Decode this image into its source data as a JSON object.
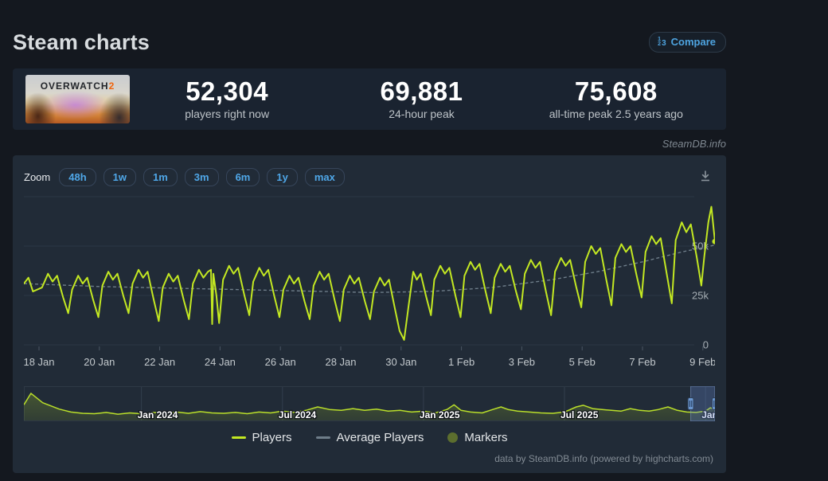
{
  "page": {
    "title": "Steam charts",
    "watermark": "SteamDB.info",
    "credit": "data by SteamDB.info (powered by highcharts.com)"
  },
  "compare": {
    "label": "Compare",
    "digits": {
      "a": "1",
      "b": "2",
      "c": "3"
    }
  },
  "game": {
    "name": "Overwatch 2",
    "logo_main": "OVERWATCH",
    "logo_suffix": "2"
  },
  "stats": [
    {
      "value": "52,304",
      "label": "players right now"
    },
    {
      "value": "69,881",
      "label": "24-hour peak"
    },
    {
      "value": "75,608",
      "label": "all-time peak 2.5 years ago"
    }
  ],
  "toolbar": {
    "zoom_label": "Zoom",
    "ranges": [
      "48h",
      "1w",
      "1m",
      "3m",
      "6m",
      "1y",
      "max"
    ]
  },
  "legend": [
    {
      "label": "Players",
      "swatch": "line",
      "color": "#c3e822"
    },
    {
      "label": "Average Players",
      "swatch": "line",
      "color": "#6e7d89"
    },
    {
      "label": "Markers",
      "swatch": "circle",
      "color": "#5c6e2e"
    }
  ],
  "chart_data": {
    "type": "line",
    "units": "thousands of concurrent players",
    "x_unit": "days since 18 Jan 00:00",
    "ylim_k": [
      0,
      75
    ],
    "grid_values_k": [
      0,
      25,
      50,
      75
    ],
    "yticks": [
      {
        "label": "50k",
        "value": 50
      },
      {
        "label": "25k",
        "value": 25
      },
      {
        "label": "0",
        "value": 0
      }
    ],
    "xticklabels": [
      "18 Jan",
      "20 Jan",
      "22 Jan",
      "24 Jan",
      "26 Jan",
      "28 Jan",
      "30 Jan",
      "1 Feb",
      "3 Feb",
      "5 Feb",
      "7 Feb",
      "9 Feb"
    ],
    "series": [
      {
        "name": "Players",
        "color": "#c3e822",
        "points": [
          [
            -0.5,
            31
          ],
          [
            -0.35,
            34
          ],
          [
            -0.2,
            27
          ],
          [
            0.1,
            29
          ],
          [
            0.3,
            36
          ],
          [
            0.45,
            32
          ],
          [
            0.6,
            35
          ],
          [
            0.8,
            24
          ],
          [
            0.97,
            16
          ],
          [
            1.1,
            28
          ],
          [
            1.3,
            35
          ],
          [
            1.45,
            31
          ],
          [
            1.6,
            34
          ],
          [
            1.8,
            22.5
          ],
          [
            1.97,
            14
          ],
          [
            2.1,
            30
          ],
          [
            2.3,
            37
          ],
          [
            2.45,
            33
          ],
          [
            2.6,
            36
          ],
          [
            2.8,
            24.5
          ],
          [
            2.97,
            16
          ],
          [
            3.1,
            31
          ],
          [
            3.3,
            38
          ],
          [
            3.45,
            34
          ],
          [
            3.6,
            37
          ],
          [
            3.8,
            23
          ],
          [
            3.97,
            12
          ],
          [
            4.1,
            29
          ],
          [
            4.3,
            36
          ],
          [
            4.45,
            32
          ],
          [
            4.6,
            35
          ],
          [
            4.8,
            22.5
          ],
          [
            4.97,
            13
          ],
          [
            5.1,
            31
          ],
          [
            5.3,
            38
          ],
          [
            5.45,
            34
          ],
          [
            5.6,
            37
          ],
          [
            5.7,
            38
          ],
          [
            5.74,
            10.5
          ],
          [
            5.78,
            36
          ],
          [
            5.88,
            25
          ],
          [
            5.97,
            11
          ],
          [
            6.1,
            33
          ],
          [
            6.3,
            40
          ],
          [
            6.45,
            36
          ],
          [
            6.6,
            39
          ],
          [
            6.8,
            25.5
          ],
          [
            6.97,
            15
          ],
          [
            7.1,
            32
          ],
          [
            7.3,
            39
          ],
          [
            7.45,
            35
          ],
          [
            7.6,
            38
          ],
          [
            7.8,
            24.5
          ],
          [
            7.97,
            14
          ],
          [
            8.1,
            28
          ],
          [
            8.3,
            35
          ],
          [
            8.45,
            31
          ],
          [
            8.6,
            34
          ],
          [
            8.8,
            22
          ],
          [
            8.97,
            13
          ],
          [
            9.1,
            30
          ],
          [
            9.3,
            37
          ],
          [
            9.45,
            33
          ],
          [
            9.6,
            36
          ],
          [
            9.8,
            22.5
          ],
          [
            9.97,
            12
          ],
          [
            10.1,
            28
          ],
          [
            10.3,
            35
          ],
          [
            10.45,
            31
          ],
          [
            10.6,
            34
          ],
          [
            10.8,
            22
          ],
          [
            10.97,
            13
          ],
          [
            11.1,
            27
          ],
          [
            11.3,
            34
          ],
          [
            11.45,
            30
          ],
          [
            11.6,
            33
          ],
          [
            11.8,
            18
          ],
          [
            11.95,
            7
          ],
          [
            12.1,
            2.5
          ],
          [
            12.25,
            20
          ],
          [
            12.4,
            37
          ],
          [
            12.52,
            33
          ],
          [
            12.65,
            36
          ],
          [
            12.82,
            25
          ],
          [
            12.99,
            15
          ],
          [
            13.1,
            33
          ],
          [
            13.3,
            40
          ],
          [
            13.45,
            36
          ],
          [
            13.6,
            39
          ],
          [
            13.8,
            25
          ],
          [
            13.97,
            14
          ],
          [
            14.1,
            35
          ],
          [
            14.3,
            42
          ],
          [
            14.45,
            38
          ],
          [
            14.6,
            41
          ],
          [
            14.8,
            27
          ],
          [
            14.97,
            16
          ],
          [
            15.1,
            34
          ],
          [
            15.3,
            41
          ],
          [
            15.45,
            37
          ],
          [
            15.6,
            40
          ],
          [
            15.8,
            27.5
          ],
          [
            15.97,
            18
          ],
          [
            16.1,
            36
          ],
          [
            16.3,
            43
          ],
          [
            16.45,
            39
          ],
          [
            16.6,
            42
          ],
          [
            16.8,
            27
          ],
          [
            16.97,
            15
          ],
          [
            17.1,
            37
          ],
          [
            17.3,
            44
          ],
          [
            17.45,
            40
          ],
          [
            17.6,
            43
          ],
          [
            17.8,
            29.5
          ],
          [
            17.97,
            19
          ],
          [
            18.1,
            42
          ],
          [
            18.3,
            50
          ],
          [
            18.45,
            46
          ],
          [
            18.6,
            49
          ],
          [
            18.8,
            33
          ],
          [
            18.97,
            20
          ],
          [
            19.1,
            44
          ],
          [
            19.3,
            51
          ],
          [
            19.45,
            47
          ],
          [
            19.6,
            50
          ],
          [
            19.8,
            35.5
          ],
          [
            19.97,
            24
          ],
          [
            20.1,
            47
          ],
          [
            20.3,
            55
          ],
          [
            20.45,
            51
          ],
          [
            20.6,
            54
          ],
          [
            20.8,
            36
          ],
          [
            20.97,
            21
          ],
          [
            21.1,
            53
          ],
          [
            21.3,
            62
          ],
          [
            21.45,
            57
          ],
          [
            21.6,
            61
          ],
          [
            21.8,
            44
          ],
          [
            21.95,
            30
          ],
          [
            22.05,
            45
          ],
          [
            22.18,
            62
          ],
          [
            22.28,
            69.9
          ],
          [
            22.4,
            52.3
          ]
        ]
      },
      {
        "name": "Average Players",
        "color": "#6e7d89",
        "dashed": true,
        "points": [
          [
            -0.5,
            31
          ],
          [
            2,
            29.5
          ],
          [
            5,
            28.5
          ],
          [
            8,
            27.5
          ],
          [
            11,
            26.5
          ],
          [
            13,
            27
          ],
          [
            15,
            29
          ],
          [
            17,
            33
          ],
          [
            18.5,
            37
          ],
          [
            20,
            42
          ],
          [
            21.3,
            47
          ],
          [
            22.4,
            50.5
          ]
        ]
      }
    ],
    "navigator": {
      "x_unit": "months since Aug 2023",
      "xlabels": [
        {
          "label": "Jan 2024",
          "m": 5
        },
        {
          "label": "Jul 2024",
          "m": 11
        },
        {
          "label": "Jan 2025",
          "m": 17
        },
        {
          "label": "Jul 2025",
          "m": 23
        },
        {
          "label": "Jan…",
          "m": 29
        }
      ],
      "selection_months": [
        28.37,
        29.4
      ],
      "points": [
        [
          0,
          35
        ],
        [
          0.3,
          62
        ],
        [
          0.8,
          40
        ],
        [
          1.5,
          25
        ],
        [
          2,
          18
        ],
        [
          2.5,
          15
        ],
        [
          3,
          14
        ],
        [
          3.5,
          17
        ],
        [
          4,
          13
        ],
        [
          4.5,
          16
        ],
        [
          5,
          14
        ],
        [
          5.5,
          17
        ],
        [
          6,
          15
        ],
        [
          6.5,
          18
        ],
        [
          7,
          15
        ],
        [
          7.5,
          19
        ],
        [
          8,
          16
        ],
        [
          8.5,
          15
        ],
        [
          9,
          17
        ],
        [
          9.5,
          14
        ],
        [
          10,
          18
        ],
        [
          10.5,
          16
        ],
        [
          11,
          20
        ],
        [
          11.5,
          17
        ],
        [
          12,
          22
        ],
        [
          12.5,
          30
        ],
        [
          13,
          24
        ],
        [
          13.5,
          22
        ],
        [
          14,
          26
        ],
        [
          14.5,
          22
        ],
        [
          15,
          25
        ],
        [
          15.5,
          20
        ],
        [
          16,
          22
        ],
        [
          16.5,
          18
        ],
        [
          17,
          20
        ],
        [
          17.5,
          16
        ],
        [
          18,
          24
        ],
        [
          18.3,
          35
        ],
        [
          18.6,
          22
        ],
        [
          19,
          18
        ],
        [
          19.5,
          16
        ],
        [
          20,
          25
        ],
        [
          20.3,
          30
        ],
        [
          20.6,
          24
        ],
        [
          21,
          20
        ],
        [
          21.5,
          18
        ],
        [
          22,
          16
        ],
        [
          22.5,
          15
        ],
        [
          23,
          18
        ],
        [
          23.5,
          30
        ],
        [
          23.8,
          34
        ],
        [
          24.2,
          26
        ],
        [
          24.6,
          24
        ],
        [
          25,
          22
        ],
        [
          25.4,
          20
        ],
        [
          25.8,
          26
        ],
        [
          26.2,
          22
        ],
        [
          26.6,
          20
        ],
        [
          27,
          24
        ],
        [
          27.4,
          30
        ],
        [
          27.8,
          22
        ],
        [
          28.2,
          18
        ],
        [
          28.6,
          17
        ],
        [
          29,
          20
        ],
        [
          29.2,
          28
        ],
        [
          29.4,
          24
        ]
      ]
    }
  }
}
